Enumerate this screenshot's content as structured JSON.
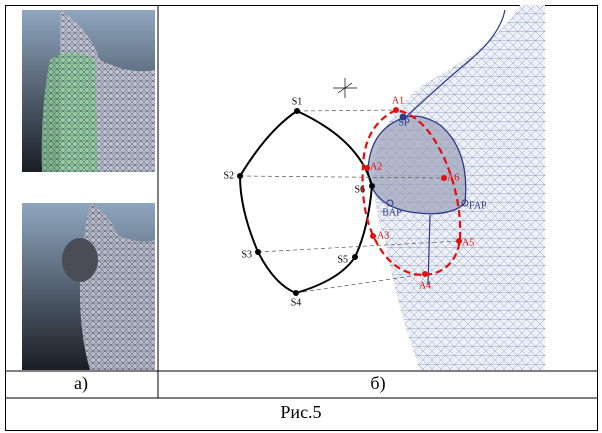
{
  "panels": [
    {
      "label": "а)"
    },
    {
      "label": "б)"
    }
  ],
  "caption": "Рис.5",
  "points": [
    "S1",
    "S2",
    "S3",
    "S4",
    "S5",
    "S6",
    "A1",
    "A2",
    "A3",
    "A4",
    "A5",
    "A6",
    "SP",
    "BAP",
    "FAP"
  ]
}
